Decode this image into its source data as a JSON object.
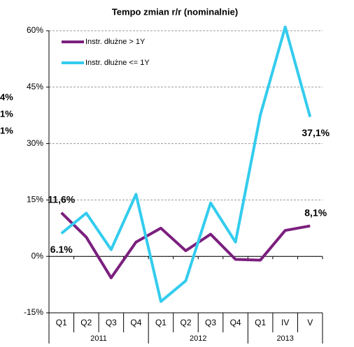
{
  "chart_data": {
    "type": "line",
    "title": "Tempo zmian r/r (nominalnie)",
    "fragments": [
      {
        "text": "4%",
        "color": "#9a9a9a"
      },
      {
        "text": "1%",
        "color": "#1a1ae6"
      },
      {
        "text": "1%",
        "color": "#e8141c"
      }
    ],
    "categories": [
      "Q1",
      "Q2",
      "Q3",
      "Q4",
      "Q1",
      "Q2",
      "Q3",
      "Q4",
      "Q1",
      "IV",
      "V"
    ],
    "groups": [
      {
        "label": "2011",
        "span": 4
      },
      {
        "label": "2012",
        "span": 4
      },
      {
        "label": "2013",
        "span": 3
      }
    ],
    "series": [
      {
        "name": "Instr. dłużne > 1Y",
        "color": "#7b1f7e",
        "values": [
          11.6,
          5.1,
          -5.7,
          3.8,
          7.5,
          1.5,
          5.9,
          -0.8,
          -1.0,
          6.9,
          8.1
        ],
        "value_labels": [
          "11,6%",
          null,
          null,
          null,
          null,
          null,
          null,
          null,
          null,
          null,
          "8,1%"
        ]
      },
      {
        "name": "Instr. dłużne <= 1Y",
        "color": "#33ccee",
        "values": [
          6.1,
          11.5,
          1.8,
          16.5,
          -12.0,
          -6.5,
          14.2,
          3.8,
          37.6,
          61.0,
          37.1
        ],
        "value_labels": [
          "6.1%",
          null,
          null,
          null,
          null,
          null,
          null,
          null,
          null,
          null,
          "37,1%"
        ]
      }
    ],
    "ylim": [
      -15,
      60
    ],
    "yticks": [
      {
        "value": -15,
        "label": "-15%"
      },
      {
        "value": 0,
        "label": "0%"
      },
      {
        "value": 15,
        "label": "15%"
      },
      {
        "value": 30,
        "label": "30%"
      },
      {
        "value": 45,
        "label": "45%"
      },
      {
        "value": 60,
        "label": "60%"
      }
    ],
    "grid": true,
    "legend": "top-left"
  }
}
